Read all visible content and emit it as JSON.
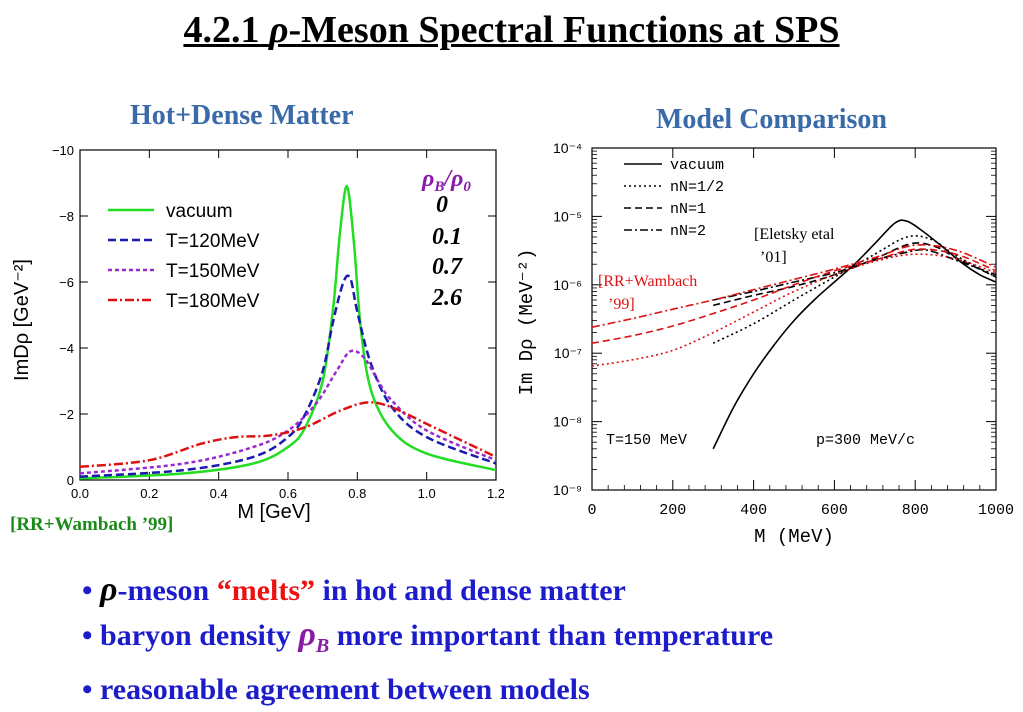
{
  "title": {
    "prefix": "4.2.1 ",
    "symbol": "ρ",
    "rest": "-Meson Spectral Functions at SPS"
  },
  "subtitle_left": "Hot+Dense Matter",
  "subtitle_right": "Model Comparison",
  "left_chart": {
    "ylabel": "ImDρ  [GeV⁻²]",
    "xlabel": "M [GeV]",
    "legend": [
      "vacuum",
      "T=120MeV",
      "T=150MeV",
      "T=180MeV"
    ],
    "density_header": "ρB/ρ0",
    "densities": [
      "0",
      "0.1",
      "0.7",
      "2.6"
    ],
    "colors": {
      "vacuum": "#22dd22",
      "t120": "#1a1ab0",
      "t150": "#9a2ad0",
      "t180": "#dd1111"
    }
  },
  "right_chart": {
    "ylabel": "Im  Dρ  (MeV⁻²)",
    "xlabel": "M  (MeV)",
    "legend": [
      "vacuum",
      "nN=1/2",
      "nN=1",
      "nN=2"
    ],
    "annot_eletsky": [
      "[Eletsky etal",
      "’01]"
    ],
    "annot_rr": [
      "[RR+Wambach",
      "’99]"
    ],
    "temp": "T=150 MeV",
    "mom": "p=300 MeV/c"
  },
  "cite_left": "[RR+Wambach ’99]",
  "bullets": {
    "b1_sym": "ρ",
    "b1_a": "-meson ",
    "b1_red": "“melts”",
    "b1_b": "  in hot and dense matter",
    "b2_a": "baryon density ",
    "b2_sym": "ρ",
    "b2_sub": "B",
    "b2_b": " more important than temperature",
    "b3": "reasonable agreement between models"
  },
  "chart_data": [
    {
      "type": "line",
      "title": "",
      "xlabel": "M [GeV]",
      "ylabel": "ImDρ [GeV⁻²]",
      "xlim": [
        0,
        1.2
      ],
      "ylim": [
        0,
        -10
      ],
      "x_ticks": [
        "0.0",
        "0.2",
        "0.4",
        "0.6",
        "0.8",
        "1.0",
        "1.2"
      ],
      "y_ticks": [
        "0",
        "−2",
        "−4",
        "−6",
        "−8",
        "−10"
      ],
      "series": [
        {
          "name": "vacuum",
          "x": [
            0,
            0.3,
            0.5,
            0.6,
            0.65,
            0.7,
            0.73,
            0.75,
            0.77,
            0.79,
            0.81,
            0.84,
            0.9,
            1.0,
            1.2
          ],
          "values": [
            -0.05,
            -0.2,
            -0.5,
            -1.0,
            -1.6,
            -3.0,
            -5.2,
            -7.5,
            -8.9,
            -7.2,
            -4.6,
            -2.7,
            -1.5,
            -0.8,
            -0.3
          ]
        },
        {
          "name": "T=120MeV",
          "x": [
            0,
            0.3,
            0.5,
            0.6,
            0.65,
            0.7,
            0.73,
            0.76,
            0.78,
            0.8,
            0.84,
            0.9,
            1.0,
            1.2
          ],
          "values": [
            -0.1,
            -0.3,
            -0.7,
            -1.3,
            -2.0,
            -3.3,
            -4.8,
            -6.0,
            -6.1,
            -5.1,
            -3.5,
            -2.2,
            -1.3,
            -0.5
          ]
        },
        {
          "name": "T=150MeV",
          "x": [
            0,
            0.3,
            0.5,
            0.6,
            0.68,
            0.74,
            0.78,
            0.82,
            0.86,
            0.9,
            1.0,
            1.2
          ],
          "values": [
            -0.2,
            -0.5,
            -1.0,
            -1.5,
            -2.3,
            -3.3,
            -3.9,
            -3.7,
            -3.0,
            -2.4,
            -1.5,
            -0.6
          ]
        },
        {
          "name": "T=180MeV",
          "x": [
            0,
            0.2,
            0.35,
            0.45,
            0.55,
            0.65,
            0.75,
            0.83,
            0.9,
            1.0,
            1.1,
            1.2
          ],
          "values": [
            -0.4,
            -0.6,
            -1.1,
            -1.3,
            -1.35,
            -1.6,
            -2.1,
            -2.35,
            -2.2,
            -1.7,
            -1.2,
            -0.7
          ]
        }
      ]
    },
    {
      "type": "line",
      "title": "",
      "xlabel": "M (MeV)",
      "ylabel": "Im Dρ (MeV⁻²)",
      "xlim": [
        0,
        1000
      ],
      "ylim": [
        1e-09,
        0.0001
      ],
      "log_y": true,
      "x_ticks": [
        "0",
        "200",
        "400",
        "600",
        "800",
        "1000"
      ],
      "y_ticks": [
        "10⁻⁹",
        "10⁻⁸",
        "10⁻⁷",
        "10⁻⁶",
        "10⁻⁵",
        "10⁻⁴"
      ],
      "series": [
        {
          "name": "vacuum",
          "x": [
            300,
            350,
            400,
            450,
            500,
            550,
            600,
            650,
            700,
            750,
            780,
            820,
            870,
            920,
            960,
            1000
          ],
          "values": [
            4e-09,
            1.6e-08,
            5e-08,
            1.3e-07,
            3e-07,
            6e-07,
            1.1e-06,
            2e-06,
            4e-06,
            8e-06,
            8.5e-06,
            6e-06,
            3.5e-06,
            2e-06,
            1.4e-06,
            1.1e-06
          ]
        },
        {
          "name": "nN=1/2",
          "x": [
            300,
            400,
            500,
            600,
            700,
            780,
            840,
            900,
            1000
          ],
          "values": [
            1.4e-07,
            2.7e-07,
            6e-07,
            1.3e-06,
            2.8e-06,
            5e-06,
            4.6e-06,
            2.7e-06,
            1.3e-06
          ]
        },
        {
          "name": "nN=1",
          "x": [
            300,
            400,
            500,
            600,
            700,
            790,
            850,
            900,
            1000
          ],
          "values": [
            5e-07,
            7e-07,
            9.5e-07,
            1.4e-06,
            2.4e-06,
            4e-06,
            3.6e-06,
            2.5e-06,
            1.3e-06
          ]
        },
        {
          "name": "nN=2",
          "x": [
            300,
            400,
            500,
            600,
            700,
            780,
            830,
            900,
            1000
          ],
          "values": [
            6e-07,
            8e-07,
            1.1e-06,
            1.5e-06,
            2.3e-06,
            3e-06,
            3.2e-06,
            2.3e-06,
            1.4e-06
          ]
        },
        {
          "name": "[RR+Wambach ’99] n=1/2",
          "x": [
            0,
            100,
            200,
            300,
            400,
            500,
            600,
            700,
            800,
            900,
            1000
          ],
          "values": [
            6.5e-08,
            8e-08,
            1.1e-07,
            2e-07,
            4e-07,
            8e-07,
            1.4e-06,
            2.2e-06,
            2.8e-06,
            2.4e-06,
            1.5e-06
          ]
        },
        {
          "name": "[RR+Wambach ’99] n=1",
          "x": [
            0,
            100,
            200,
            300,
            400,
            500,
            600,
            700,
            800,
            900,
            1000
          ],
          "values": [
            1.4e-07,
            1.8e-07,
            2.5e-07,
            3.8e-07,
            6e-07,
            1e-06,
            1.6e-06,
            2.3e-06,
            3.3e-06,
            2.8e-06,
            1.6e-06
          ]
        },
        {
          "name": "[RR+Wambach ’99] n=2",
          "x": [
            0,
            100,
            200,
            300,
            400,
            500,
            600,
            700,
            800,
            900,
            1000
          ],
          "values": [
            2.4e-07,
            3.2e-07,
            4.4e-07,
            6e-07,
            8.5e-07,
            1.2e-06,
            1.7e-06,
            2.5e-06,
            3.8e-06,
            3.2e-06,
            1.8e-06
          ]
        }
      ]
    }
  ]
}
